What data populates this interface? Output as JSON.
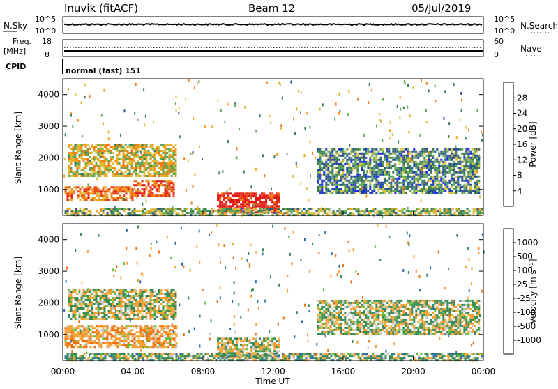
{
  "header": {
    "station": "Inuvik (fitACF)",
    "beam": "Beam 12",
    "date": "05/Jul/2019"
  },
  "status_panels": {
    "sky": {
      "left_label": "N.Sky",
      "left_ticks": [
        "10^5",
        "10^0"
      ],
      "right_label": "N.Search",
      "right_ticks": [
        "10^5",
        "10^0"
      ]
    },
    "freq": {
      "left_label_line1": "Freq.",
      "left_label_line2": "[MHz]",
      "left_ticks": [
        "18",
        "8"
      ],
      "right_label": "Nave",
      "right_ticks": [
        "60",
        "0"
      ]
    },
    "cpid": {
      "label": "CPID",
      "value": "normal (fast) 151"
    }
  },
  "colors": {
    "power_scale": [
      "#1426ff",
      "#2a4a9c",
      "#3a7a55",
      "#5fa857",
      "#d9c24a",
      "#f5a21b",
      "#f07a14",
      "#e8401c",
      "#e01414"
    ],
    "velocity_scale": [
      "#2f3fb0",
      "#2d6ea8",
      "#3a8a55",
      "#62c040",
      "#c8c8c8",
      "#f0c060",
      "#f5a030",
      "#f07010",
      "#e02010"
    ]
  },
  "chart_data": [
    {
      "type": "heatmap",
      "title": "",
      "xlabel": "Time UT",
      "ylabel": "Slant Range [km]",
      "xlim": [
        "00:00",
        "24:00"
      ],
      "ylim": [
        180,
        4500
      ],
      "x_ticks": [
        "00:00",
        "04:00",
        "08:00",
        "12:00",
        "16:00",
        "20:00",
        "00:00"
      ],
      "y_ticks": [
        1000,
        2000,
        3000,
        4000
      ],
      "colorbar": {
        "label": "Power [dB]",
        "ticks": [
          "28",
          "24",
          "20",
          "16",
          "12",
          "8",
          "4"
        ],
        "range": [
          0,
          30
        ]
      },
      "regions": [
        {
          "t0": 0.1,
          "t1": 4.0,
          "r0": 700,
          "r1": 1100,
          "level": 22
        },
        {
          "t0": 4.0,
          "t1": 6.3,
          "r0": 780,
          "r1": 1300,
          "level": 26
        },
        {
          "t0": 0.3,
          "t1": 6.5,
          "r0": 1400,
          "r1": 2450,
          "level": 16
        },
        {
          "t0": 8.8,
          "t1": 12.3,
          "r0": 250,
          "r1": 900,
          "level": 30
        },
        {
          "t0": 14.5,
          "t1": 23.8,
          "r0": 900,
          "r1": 2300,
          "level": 8
        },
        {
          "t0": 0.1,
          "t1": 23.9,
          "r0": 200,
          "r1": 420,
          "level": 12
        }
      ]
    },
    {
      "type": "heatmap",
      "title": "",
      "xlabel": "Time UT",
      "ylabel": "Slant Range [km]",
      "xlim": [
        "00:00",
        "24:00"
      ],
      "ylim": [
        180,
        4500
      ],
      "x_ticks": [
        "00:00",
        "04:00",
        "08:00",
        "12:00",
        "16:00",
        "20:00",
        "00:00"
      ],
      "y_ticks": [
        1000,
        2000,
        3000,
        4000
      ],
      "colorbar": {
        "label": "Velocity [m s⁻¹]",
        "ticks": [
          "1000",
          "500",
          "100",
          "25",
          "-25",
          "-100",
          "-500",
          "-1000"
        ],
        "range": [
          -1200,
          1200
        ]
      },
      "regions": [
        {
          "t0": 0.1,
          "t1": 6.5,
          "r0": 600,
          "r1": 1300,
          "level": -200
        },
        {
          "t0": 0.3,
          "t1": 6.5,
          "r0": 1500,
          "r1": 2450,
          "level": 0
        },
        {
          "t0": 8.8,
          "t1": 12.3,
          "r0": 300,
          "r1": 900,
          "level": 0
        },
        {
          "t0": 14.5,
          "t1": 23.8,
          "r0": 1000,
          "r1": 2100,
          "level": 30
        },
        {
          "t0": 0.1,
          "t1": 23.9,
          "r0": 200,
          "r1": 420,
          "level": 120
        }
      ]
    }
  ]
}
